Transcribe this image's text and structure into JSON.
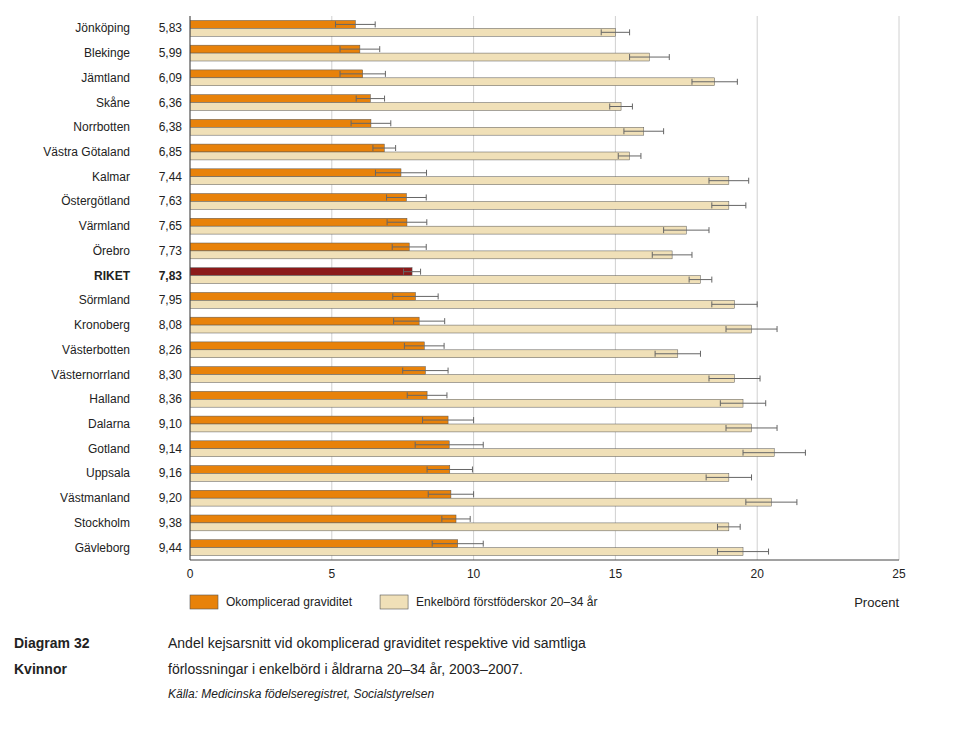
{
  "chart_data": {
    "type": "bar",
    "orientation": "horizontal",
    "title": "Diagram 32",
    "subtitle": "Kvinnor",
    "annotations": [
      "Andel kejsarsnitt vid okomplicerad graviditet respektive vid samtliga",
      "förlossningar i enkelbörd i åldrarna 20–34 år, 2003–2007.",
      "Källa: Medicinska födelseregistret, Socialstyrelsen"
    ],
    "x_label": "Procent",
    "categories": [
      "Jönköping",
      "Blekinge",
      "Jämtland",
      "Skåne",
      "Norrbotten",
      "Västra Götaland",
      "Kalmar",
      "Östergötland",
      "Värmland",
      "Örebro",
      "RIKET",
      "Sörmland",
      "Kronoberg",
      "Västerbotten",
      "Västernorrland",
      "Halland",
      "Dalarna",
      "Gotland",
      "Uppsala",
      "Västmanland",
      "Stockholm",
      "Gävleborg"
    ],
    "series": [
      {
        "name": "Okomplicerad graviditet",
        "color": "#E8820A",
        "colors": [
          "#E8820A",
          "#E8820A",
          "#E8820A",
          "#E8820A",
          "#E8820A",
          "#E8820A",
          "#E8820A",
          "#E8820A",
          "#E8820A",
          "#E8820A",
          "#8B1A1A",
          "#E8820A",
          "#E8820A",
          "#E8820A",
          "#E8820A",
          "#E8820A",
          "#E8820A",
          "#E8820A",
          "#E8820A",
          "#E8820A",
          "#E8820A",
          "#E8820A"
        ],
        "values": [
          5.83,
          5.99,
          6.09,
          6.36,
          6.38,
          6.85,
          7.44,
          7.63,
          7.65,
          7.73,
          7.83,
          7.95,
          8.08,
          8.26,
          8.3,
          8.36,
          9.1,
          9.14,
          9.16,
          9.2,
          9.38,
          9.44
        ],
        "value_labels": [
          "5,83",
          "5,99",
          "6,09",
          "6,36",
          "6,38",
          "6,85",
          "7,44",
          "7,63",
          "7,65",
          "7,73",
          "7,83",
          "7,95",
          "8,08",
          "8,26",
          "8,30",
          "8,36",
          "9,10",
          "9,14",
          "9,16",
          "9,20",
          "9,38",
          "9,44"
        ],
        "errors": [
          0.7,
          0.7,
          0.8,
          0.5,
          0.7,
          0.4,
          0.9,
          0.7,
          0.7,
          0.6,
          0.3,
          0.8,
          0.9,
          0.7,
          0.8,
          0.7,
          0.9,
          1.2,
          0.8,
          0.8,
          0.5,
          0.9
        ]
      },
      {
        "name": "Enkelbörd förstföderskor 20–34 år",
        "color": "#F0E0B8",
        "values": [
          15.0,
          16.2,
          18.5,
          15.2,
          16.0,
          15.5,
          19.0,
          19.0,
          17.5,
          17.0,
          18.0,
          19.2,
          19.8,
          17.2,
          19.2,
          19.5,
          19.8,
          20.6,
          19.0,
          20.5,
          19.0,
          19.5
        ],
        "errors": [
          0.5,
          0.7,
          0.8,
          0.4,
          0.7,
          0.4,
          0.7,
          0.6,
          0.8,
          0.7,
          0.4,
          0.8,
          0.9,
          0.8,
          0.9,
          0.8,
          0.9,
          1.1,
          0.8,
          0.9,
          0.4,
          0.9
        ]
      }
    ],
    "xlim": [
      0,
      25
    ],
    "xticks": [
      0,
      5,
      10,
      15,
      20,
      25
    ],
    "grid": true,
    "legend": "bottom",
    "data_labels": true
  }
}
